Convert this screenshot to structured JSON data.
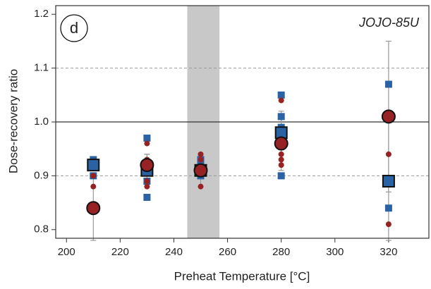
{
  "chart_data": {
    "type": "scatter",
    "panel_label": "d",
    "annotation": "JOJO-85U",
    "x_label": "Preheat Temperature [°C]",
    "y_label": "Dose-recovery ratio",
    "xlim": [
      196,
      335
    ],
    "ylim": [
      0.784,
      1.216
    ],
    "xticks": [
      200,
      220,
      240,
      260,
      280,
      300,
      320
    ],
    "yticks": [
      0.8,
      0.9,
      {
        "value": 1,
        "label": "1.0"
      },
      1.1,
      1.2
    ],
    "shaded_range": [
      245,
      257
    ],
    "hlines": [
      {
        "value": 1,
        "style": "solid"
      },
      {
        "value": 0.9,
        "style": "dashed"
      },
      {
        "value": 1.1,
        "style": "dashed"
      }
    ],
    "series": [
      {
        "marker": "square",
        "size": "small",
        "color": "#2a62a3",
        "x": [
          210,
          210,
          210,
          230,
          230,
          230,
          230,
          250,
          250,
          250,
          280,
          280,
          280,
          280,
          280,
          320,
          320
        ],
        "values": [
          0.93,
          0.92,
          0.9,
          0.97,
          0.91,
          0.89,
          0.86,
          0.93,
          0.92,
          0.9,
          1.05,
          1.01,
          0.99,
          0.97,
          0.9,
          1.07,
          0.84
        ]
      },
      {
        "marker": "circle",
        "size": "small",
        "color": "#962224",
        "x": [
          210,
          210,
          210,
          230,
          230,
          230,
          230,
          250,
          250,
          250,
          280,
          280,
          280,
          280,
          320,
          320
        ],
        "values": [
          0.92,
          0.9,
          0.88,
          0.96,
          0.93,
          0.89,
          0.88,
          0.94,
          0.93,
          0.88,
          1.04,
          0.94,
          0.93,
          0.92,
          0.94,
          0.81
        ]
      },
      {
        "marker": "square",
        "size": "large",
        "color": "#2a62a3",
        "x": [
          210,
          230,
          250,
          280,
          320
        ],
        "values": [
          0.92,
          0.91,
          0.91,
          0.98,
          0.89
        ],
        "errors": [
          0.01,
          0.03,
          0.01,
          0.04,
          0.11
        ]
      },
      {
        "marker": "circle",
        "size": "large",
        "color": "#962224",
        "x": [
          210,
          230,
          250,
          280,
          320
        ],
        "values": [
          0.84,
          0.92,
          0.91,
          0.96,
          1.01
        ],
        "errors": [
          0.06,
          0.02,
          0.03,
          0.05,
          0.14
        ]
      }
    ]
  }
}
